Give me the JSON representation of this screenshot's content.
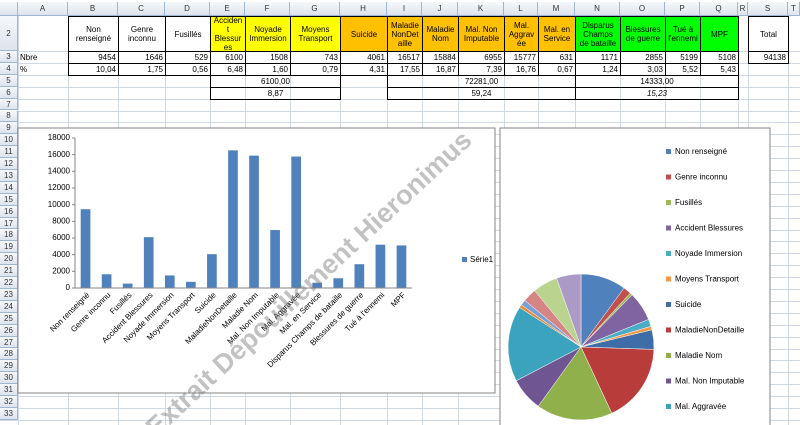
{
  "sheet": {
    "columns": [
      "A",
      "B",
      "C",
      "D",
      "E",
      "F",
      "G",
      "H",
      "I",
      "J",
      "K",
      "L",
      "M",
      "N",
      "O",
      "P",
      "Q",
      "R",
      "S",
      "T"
    ],
    "row_numbers": [
      "2",
      "3",
      "4",
      "5",
      "6",
      "7",
      "8",
      "9",
      "10",
      "11",
      "12",
      "13",
      "14",
      "15",
      "16",
      "17",
      "18",
      "19",
      "20",
      "21",
      "22",
      "23",
      "24",
      "25",
      "26",
      "27",
      "28",
      "29",
      "30",
      "31",
      "32",
      "33"
    ],
    "rows": [
      [
        null,
        "Non renseigné",
        "Genre inconnu",
        "Fusillés",
        "Accident Blessures",
        "Noyade Immersion",
        "Moyens Transport",
        "Suicide",
        "Maladie NonDetaille",
        "Maladie Nom",
        "Mal. Non Imputable",
        "Mal. Aggravée",
        "Mal. en Service",
        "Disparus Champs de bataille",
        "Blessures de guerre",
        "Tué à l'ennemi",
        "MPF",
        null,
        "Total",
        null
      ],
      [
        "Nbre",
        "9454",
        "1646",
        "529",
        "6100",
        "1508",
        "743",
        "4061",
        "16517",
        "15884",
        "6955",
        "15777",
        "631",
        "1171",
        "2855",
        "5199",
        "5108",
        null,
        "94138",
        null
      ],
      [
        "%",
        "10,04",
        "1,75",
        "0,56",
        "6,48",
        "1,60",
        "0,79",
        "4,31",
        "17,55",
        "16,87",
        "7,39",
        "16,76",
        "0,67",
        "1,24",
        "3,03",
        "5,52",
        "5,43",
        null,
        null,
        null
      ],
      [
        null,
        null,
        null,
        null,
        "6100,00",
        null,
        null,
        null,
        "72281,00",
        null,
        null,
        null,
        null,
        "14333,00",
        null,
        null,
        null,
        null,
        null,
        null
      ],
      [
        null,
        null,
        null,
        null,
        "8,87",
        null,
        null,
        null,
        "59,24",
        null,
        null,
        null,
        null,
        "15,23",
        null,
        null,
        null,
        null,
        null,
        null
      ]
    ]
  },
  "chart_data": [
    {
      "type": "bar",
      "categories": [
        "Non renseigné",
        "Genre inconnu",
        "Fusillés",
        "Accident Blessures",
        "Noyade Immersion",
        "Moyens Transport",
        "Suicide",
        "MaladieNonDetaille",
        "Maladie Nom",
        "Mal. Non Imputable",
        "Mal. Aggravée",
        "Mal. en Service",
        "Disparus Champs de bataille",
        "Blessures de guerre",
        "Tué à l'ennemi",
        "MPF"
      ],
      "series": [
        {
          "name": "Série1",
          "color": "#4f81bd",
          "values": [
            9454,
            1646,
            529,
            6100,
            1508,
            743,
            4061,
            16517,
            15884,
            6955,
            15777,
            631,
            1171,
            2855,
            5199,
            5108
          ]
        }
      ],
      "ylim": [
        0,
        18000
      ],
      "yticks": [
        0,
        2000,
        4000,
        6000,
        8000,
        10000,
        12000,
        14000,
        16000,
        18000
      ],
      "grid": false
    },
    {
      "type": "pie",
      "values": [
        9454,
        1646,
        529,
        6100,
        1508,
        743,
        4061,
        16517,
        15884,
        6955,
        15777,
        631,
        1171,
        2855,
        5199,
        5108
      ],
      "colors": [
        "#4f81bd",
        "#c0504d",
        "#9bbb59",
        "#8064a2",
        "#4bacc6",
        "#f79646",
        "#3e6da8",
        "#b83c39",
        "#8fb04a",
        "#6f5591",
        "#3ca3be",
        "#e9862f",
        "#7aa0d3",
        "#d58583",
        "#bad38f",
        "#aa9ac5"
      ],
      "legend": [
        "Non renseigné",
        "Genre inconnu",
        "Fusillés",
        "Accident Blessures",
        "Noyade Immersion",
        "Moyens Transport",
        "Suicide",
        "MaladieNonDetaille",
        "Maladie Nom",
        "Mal. Non Imputable",
        "Mal. Aggravée"
      ]
    }
  ],
  "watermark": "Extrait Dépouillement Hieronimus"
}
